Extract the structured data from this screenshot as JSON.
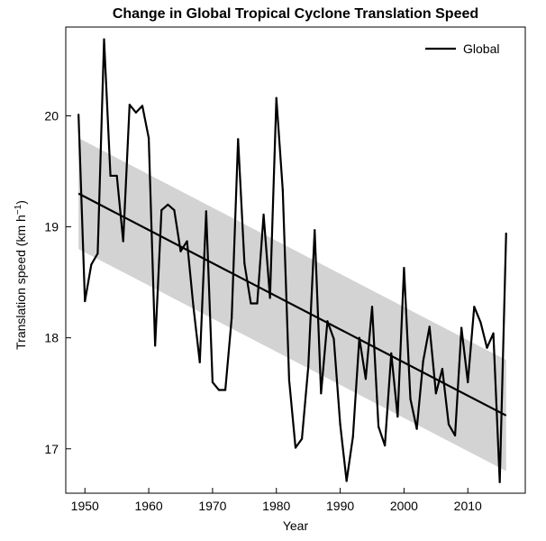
{
  "chart_data": {
    "type": "line",
    "title": "Change in Global Tropical Cyclone Translation Speed",
    "xlabel": "Year",
    "ylabel_main": "Translation speed (km h",
    "ylabel_sup": "−1",
    "ylabel_close": ")",
    "xlim": [
      1947,
      2019
    ],
    "ylim": [
      16.6,
      20.8
    ],
    "xticks": [
      1950,
      1960,
      1970,
      1980,
      1990,
      2000,
      2010
    ],
    "yticks": [
      17,
      18,
      19,
      20
    ],
    "legend": {
      "position": "top-right",
      "label": "Global"
    },
    "series": [
      {
        "name": "Global",
        "x": [
          1949,
          1950,
          1951,
          1952,
          1953,
          1954,
          1955,
          1956,
          1957,
          1958,
          1959,
          1960,
          1961,
          1962,
          1963,
          1964,
          1965,
          1966,
          1967,
          1968,
          1969,
          1970,
          1971,
          1972,
          1973,
          1974,
          1975,
          1976,
          1977,
          1978,
          1979,
          1980,
          1981,
          1982,
          1983,
          1984,
          1985,
          1986,
          1987,
          1988,
          1989,
          1990,
          1991,
          1992,
          1993,
          1994,
          1995,
          1996,
          1997,
          1998,
          1999,
          2000,
          2001,
          2002,
          2003,
          2004,
          2005,
          2006,
          2007,
          2008,
          2009,
          2010,
          2011,
          2012,
          2013,
          2014,
          2015,
          2016
        ],
        "values": [
          20.01,
          18.33,
          18.66,
          18.76,
          20.69,
          19.46,
          19.46,
          18.87,
          20.1,
          20.03,
          20.09,
          19.8,
          17.93,
          19.15,
          19.2,
          19.15,
          18.78,
          18.87,
          18.28,
          17.78,
          19.14,
          17.6,
          17.53,
          17.53,
          18.18,
          19.79,
          18.67,
          18.31,
          18.31,
          19.11,
          18.36,
          20.16,
          19.33,
          17.62,
          17.01,
          17.09,
          17.74,
          18.97,
          17.5,
          18.15,
          17.99,
          17.22,
          16.71,
          17.11,
          18.0,
          17.63,
          18.28,
          17.2,
          17.03,
          17.86,
          17.29,
          18.63,
          17.45,
          17.18,
          17.79,
          18.1,
          17.5,
          17.72,
          17.22,
          17.12,
          18.09,
          17.6,
          18.28,
          18.14,
          17.91,
          18.04,
          16.7,
          18.94
        ]
      }
    ],
    "trend": {
      "x": [
        1949,
        2016
      ],
      "y": [
        19.3,
        17.3
      ]
    },
    "confidence_band": {
      "x": [
        1949,
        2016
      ],
      "upper": [
        19.8,
        17.8
      ],
      "lower": [
        18.8,
        16.8
      ]
    },
    "colors": {
      "line": "#000000",
      "band": "#d3d3d3"
    }
  }
}
